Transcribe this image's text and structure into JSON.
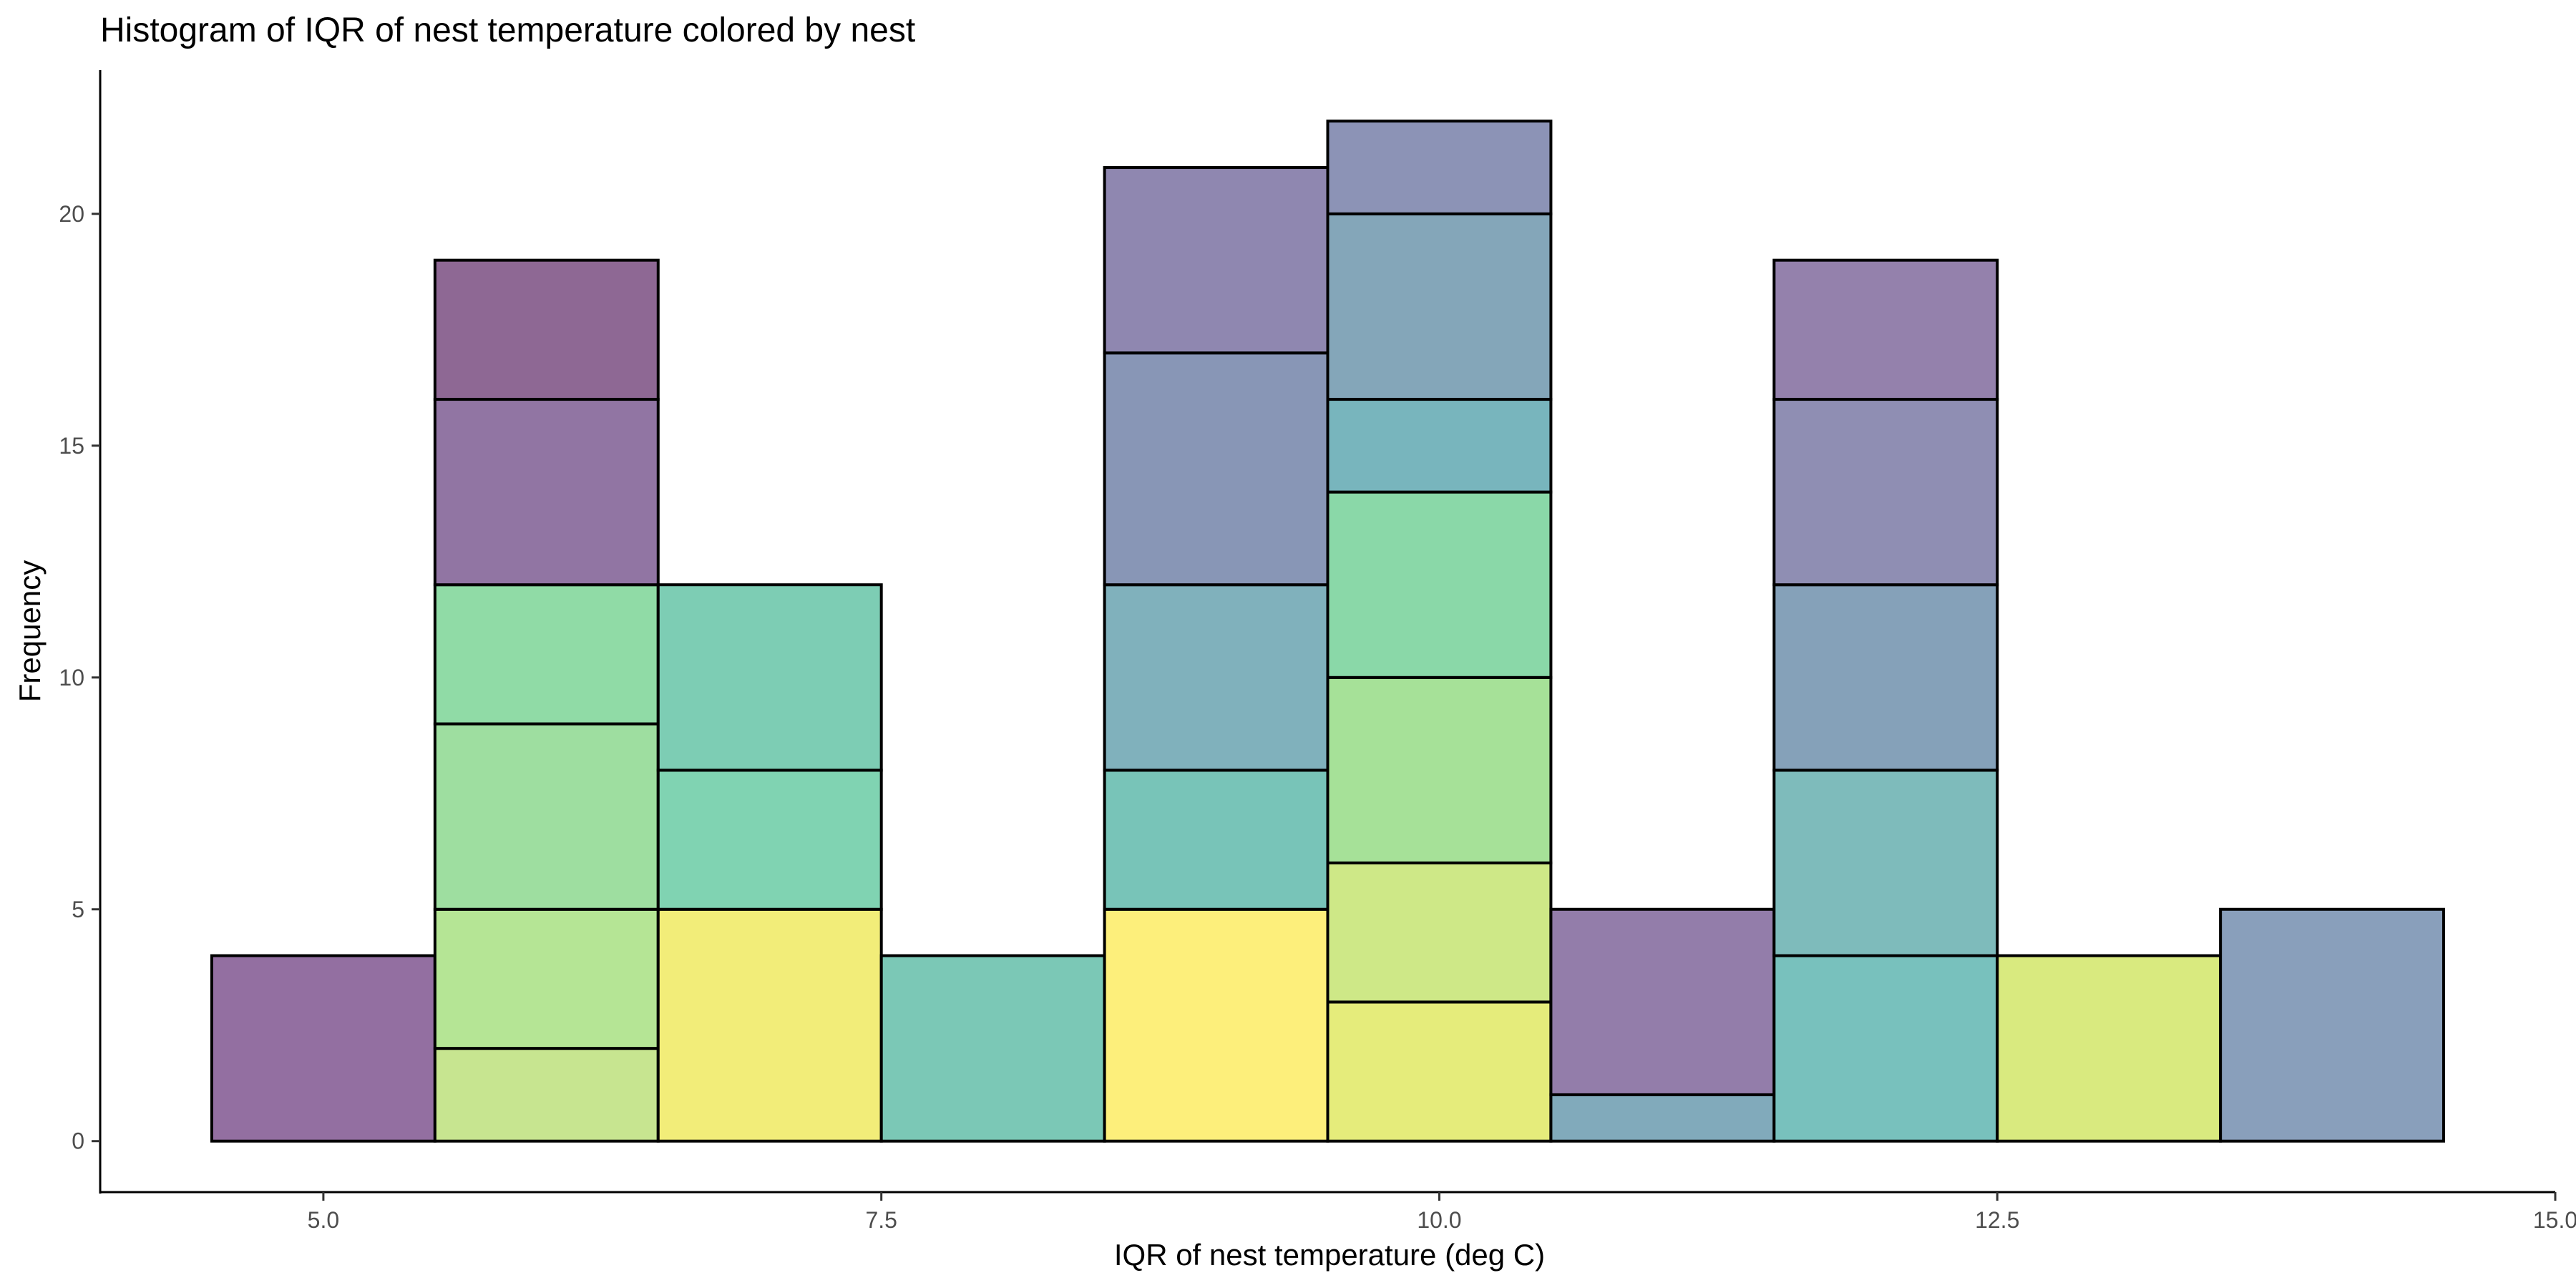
{
  "chart_data": {
    "type": "bar",
    "stacked": true,
    "title": "Histogram of IQR of nest temperature colored by nest",
    "xlabel": "IQR of nest temperature (deg C)",
    "ylabel": "Frequency",
    "xlim": [
      4.0,
      15.0
    ],
    "ylim": [
      -1.1,
      23.1
    ],
    "x_ticks": [
      5.0,
      7.5,
      10.0,
      12.5,
      15.0
    ],
    "x_tick_labels": [
      "5.0",
      "7.5",
      "10.0",
      "12.5",
      "15.0"
    ],
    "y_ticks": [
      0,
      5,
      10,
      15,
      20
    ],
    "y_tick_labels": [
      "0",
      "5",
      "10",
      "15",
      "20"
    ],
    "grid": false,
    "legend": "none",
    "bin_width": 1.0,
    "bins": [
      {
        "center": 5,
        "total": 4,
        "segments": [
          {
            "count": 4,
            "color": "#936fa1"
          }
        ]
      },
      {
        "center": 6,
        "total": 19,
        "segments": [
          {
            "count": 2,
            "color": "#c7e590"
          },
          {
            "count": 3,
            "color": "#b5e595"
          },
          {
            "count": 4,
            "color": "#9edea0"
          },
          {
            "count": 3,
            "color": "#90dba6"
          },
          {
            "count": 4,
            "color": "#9175a3"
          },
          {
            "count": 3,
            "color": "#8e6894"
          }
        ]
      },
      {
        "center": 7,
        "total": 12,
        "segments": [
          {
            "count": 5,
            "color": "#f2ed79"
          },
          {
            "count": 3,
            "color": "#80d3b2"
          },
          {
            "count": 4,
            "color": "#7dcdb4"
          }
        ]
      },
      {
        "center": 8,
        "total": 4,
        "segments": [
          {
            "count": 4,
            "color": "#7bc8b6"
          }
        ]
      },
      {
        "center": 9,
        "total": 21,
        "segments": [
          {
            "count": 5,
            "color": "#fdef7b"
          },
          {
            "count": 3,
            "color": "#78c4b8"
          },
          {
            "count": 4,
            "color": "#80b1bc"
          },
          {
            "count": 5,
            "color": "#8896b6"
          },
          {
            "count": 4,
            "color": "#8f87b0"
          }
        ]
      },
      {
        "center": 10,
        "total": 22,
        "segments": [
          {
            "count": 3,
            "color": "#e5ec7b"
          },
          {
            "count": 3,
            "color": "#cee887"
          },
          {
            "count": 4,
            "color": "#a6e198"
          },
          {
            "count": 4,
            "color": "#8ad8a8"
          },
          {
            "count": 2,
            "color": "#78b5bd"
          },
          {
            "count": 4,
            "color": "#84a6b9"
          },
          {
            "count": 2,
            "color": "#8c93b6"
          }
        ]
      },
      {
        "center": 11,
        "total": 5,
        "segments": [
          {
            "count": 1,
            "color": "#81aabb"
          },
          {
            "count": 4,
            "color": "#937daa"
          }
        ]
      },
      {
        "center": 12,
        "total": 19,
        "segments": [
          {
            "count": 4,
            "color": "#78c1bd"
          },
          {
            "count": 4,
            "color": "#7ebbbb"
          },
          {
            "count": 4,
            "color": "#85a1b9"
          },
          {
            "count": 4,
            "color": "#8f8eb3"
          },
          {
            "count": 3,
            "color": "#9481ac"
          }
        ]
      },
      {
        "center": 13,
        "total": 4,
        "segments": [
          {
            "count": 4,
            "color": "#d9ea7f"
          }
        ]
      },
      {
        "center": 14,
        "total": 5,
        "segments": [
          {
            "count": 5,
            "color": "#899fbb"
          }
        ]
      }
    ]
  }
}
